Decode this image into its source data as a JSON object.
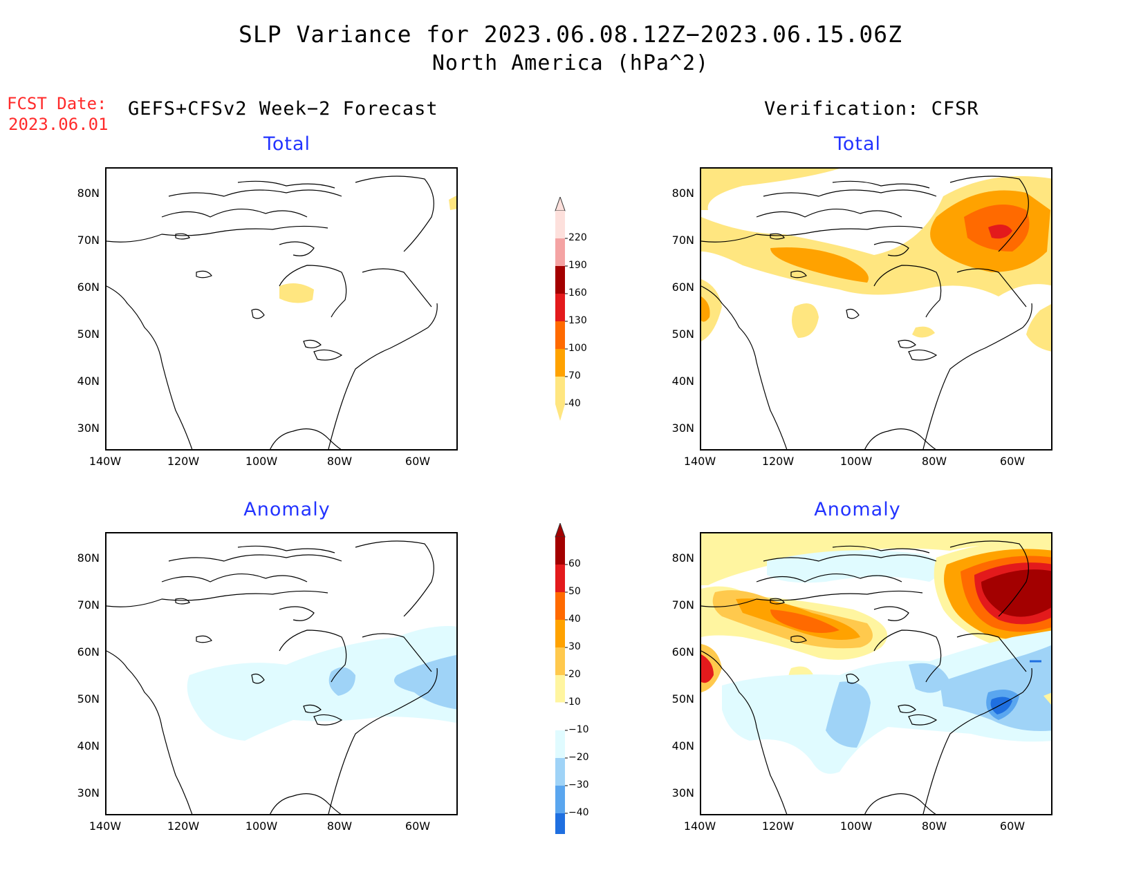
{
  "title": {
    "line1": "SLP Variance for 2023.06.08.12Z−2023.06.15.06Z",
    "line2": "North America (hPa^2)"
  },
  "fcst": {
    "label": "FCST Date:",
    "date": "2023.06.01"
  },
  "left_header": "GEFS+CFSv2 Week−2 Forecast",
  "right_header": "Verification: CFSR",
  "panels": [
    {
      "id": "fcst-total",
      "title": "Total"
    },
    {
      "id": "verif-total",
      "title": "Total"
    },
    {
      "id": "fcst-anomaly",
      "title": "Anomaly"
    },
    {
      "id": "verif-anomaly",
      "title": "Anomaly"
    }
  ],
  "axes": {
    "lat_labels": [
      "80N",
      "70N",
      "60N",
      "50N",
      "40N",
      "30N"
    ],
    "lon_labels": [
      "140W",
      "120W",
      "100W",
      "80W",
      "60W"
    ]
  },
  "colorbars": {
    "total": {
      "labels": [
        "220",
        "190",
        "160",
        "130",
        "100",
        "70",
        "40"
      ],
      "colors": [
        "#fde0dc",
        "#f4a3a3",
        "#a30000",
        "#e31a1c",
        "#ff6a00",
        "#ffa200",
        "#ffe680"
      ]
    },
    "anomaly": {
      "labels": [
        "60",
        "50",
        "40",
        "30",
        "20",
        "10",
        "−10",
        "−20",
        "−30",
        "−40"
      ],
      "colors": [
        "#a30000",
        "#e31a1c",
        "#ff6a00",
        "#ffa200",
        "#ffc94d",
        "#fff5a0",
        "#ffffff",
        "#e0fbff",
        "#9fd3f7",
        "#5aa6ef",
        "#1f6fe0"
      ]
    }
  }
}
